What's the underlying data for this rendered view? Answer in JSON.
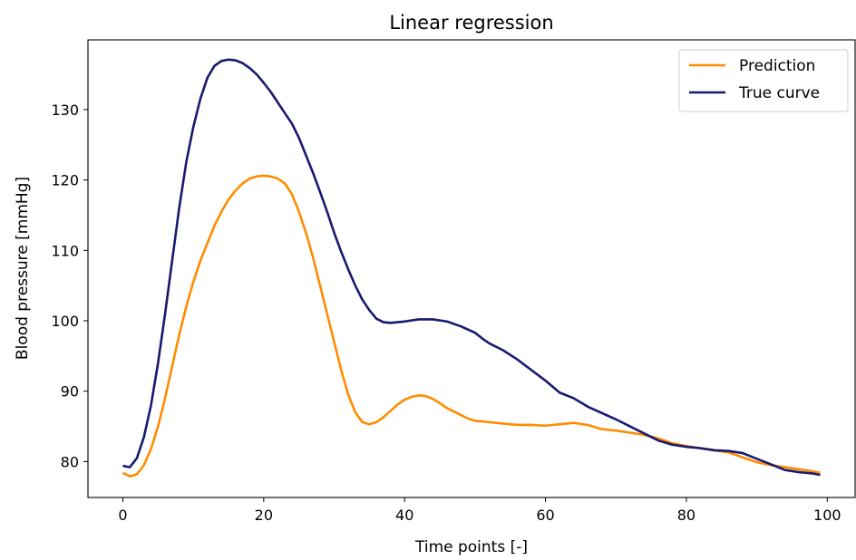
{
  "chart_data": {
    "type": "line",
    "title": "Linear regression",
    "xlabel": "Time points [-]",
    "ylabel": "Blood pressure [mmHg]",
    "xlim": [
      -4.95,
      103.95
    ],
    "ylim": [
      74.9,
      139.9
    ],
    "xticks": [
      0,
      20,
      40,
      60,
      80,
      100
    ],
    "yticks": [
      80,
      90,
      100,
      110,
      120,
      130
    ],
    "grid": false,
    "legend_position": "top-right",
    "series": [
      {
        "name": "Prediction",
        "color": "#ff8c00",
        "x": [
          0,
          1,
          2,
          3,
          4,
          5,
          6,
          7,
          8,
          9,
          10,
          11,
          12,
          13,
          14,
          15,
          16,
          17,
          18,
          19,
          20,
          21,
          22,
          23,
          24,
          25,
          26,
          27,
          28,
          29,
          30,
          31,
          32,
          33,
          34,
          35,
          36,
          37,
          38,
          39,
          40,
          41,
          42,
          43,
          44,
          45,
          46,
          47,
          48,
          49,
          50,
          52,
          54,
          56,
          58,
          60,
          62,
          64,
          66,
          68,
          70,
          72,
          74,
          76,
          78,
          80,
          82,
          84,
          86,
          88,
          90,
          92,
          94,
          96,
          98,
          99
        ],
        "y": [
          78.4,
          77.9,
          78.2,
          79.5,
          81.8,
          85.0,
          89.0,
          93.5,
          98.0,
          102.0,
          105.5,
          108.5,
          111.0,
          113.5,
          115.5,
          117.2,
          118.5,
          119.5,
          120.2,
          120.5,
          120.6,
          120.5,
          120.2,
          119.5,
          118.0,
          115.5,
          112.5,
          109.0,
          105.0,
          101.0,
          97.0,
          93.0,
          89.5,
          87.0,
          85.6,
          85.3,
          85.6,
          86.3,
          87.2,
          88.1,
          88.8,
          89.2,
          89.4,
          89.3,
          88.9,
          88.3,
          87.6,
          87.1,
          86.6,
          86.1,
          85.8,
          85.6,
          85.4,
          85.2,
          85.2,
          85.1,
          85.3,
          85.5,
          85.2,
          84.6,
          84.4,
          84.1,
          83.8,
          83.3,
          82.6,
          82.2,
          81.9,
          81.6,
          81.3,
          80.6,
          79.9,
          79.5,
          79.2,
          78.9,
          78.6,
          78.4
        ]
      },
      {
        "name": "True curve",
        "color": "#191970",
        "x": [
          0,
          1,
          2,
          3,
          4,
          5,
          6,
          7,
          8,
          9,
          10,
          11,
          12,
          13,
          14,
          15,
          16,
          17,
          18,
          19,
          20,
          21,
          22,
          23,
          24,
          25,
          26,
          27,
          28,
          29,
          30,
          31,
          32,
          33,
          34,
          35,
          36,
          37,
          38,
          39,
          40,
          42,
          44,
          46,
          48,
          50,
          51,
          52,
          54,
          56,
          58,
          60,
          62,
          64,
          66,
          68,
          70,
          72,
          74,
          76,
          78,
          80,
          82,
          84,
          86,
          88,
          90,
          92,
          94,
          96,
          98,
          99
        ],
        "y": [
          79.4,
          79.2,
          80.5,
          83.5,
          88.0,
          94.0,
          101.0,
          108.5,
          116.0,
          122.5,
          127.5,
          131.5,
          134.5,
          136.2,
          136.9,
          137.1,
          137.0,
          136.6,
          135.9,
          135.0,
          133.8,
          132.5,
          131.0,
          129.5,
          128.0,
          126.0,
          123.5,
          121.0,
          118.3,
          115.5,
          112.5,
          109.8,
          107.3,
          105.0,
          103.0,
          101.5,
          100.3,
          99.8,
          99.7,
          99.8,
          99.9,
          100.2,
          100.2,
          99.9,
          99.2,
          98.3,
          97.5,
          96.8,
          95.8,
          94.5,
          93.0,
          91.5,
          89.8,
          89.0,
          87.8,
          86.9,
          86.0,
          85.0,
          84.0,
          83.0,
          82.4,
          82.1,
          81.9,
          81.6,
          81.5,
          81.2,
          80.4,
          79.6,
          78.8,
          78.5,
          78.3,
          78.1
        ]
      }
    ]
  }
}
